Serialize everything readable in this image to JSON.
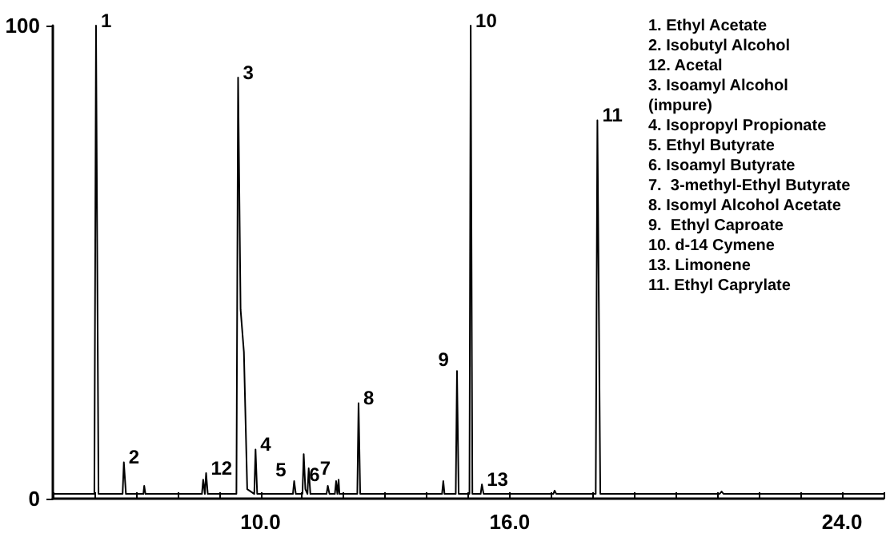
{
  "chart_data": {
    "type": "line",
    "x": [
      5.0,
      6.0,
      6.04,
      6.1,
      6.68,
      6.71,
      6.76,
      7.18,
      7.2,
      7.23,
      8.59,
      8.62,
      8.66,
      8.69,
      8.73,
      9.42,
      9.46,
      9.52,
      9.6,
      9.68,
      9.85,
      9.88,
      9.92,
      10.78,
      10.81,
      10.85,
      11.01,
      11.04,
      11.08,
      11.13,
      11.16,
      11.2,
      11.59,
      11.62,
      11.66,
      11.79,
      11.82,
      11.85,
      11.88,
      11.9,
      11.94,
      12.33,
      12.36,
      12.4,
      14.37,
      14.4,
      14.43,
      14.7,
      14.73,
      14.77,
      15.03,
      15.06,
      15.1,
      15.3,
      15.33,
      15.37,
      17.05,
      17.08,
      17.12,
      18.07,
      18.11,
      18.18,
      21.05,
      21.1,
      21.15,
      25.0
    ],
    "series": [
      {
        "color": "#000000",
        "values": [
          1,
          1,
          100,
          1,
          1,
          7.7,
          1,
          1,
          2.7,
          1,
          1,
          4,
          1,
          5.4,
          1,
          1,
          89,
          40,
          31,
          2,
          1,
          10.4,
          1,
          1,
          3.7,
          1,
          1,
          9.4,
          2,
          1,
          6.4,
          1,
          1,
          2.7,
          1,
          1,
          3.7,
          1,
          4,
          1,
          1,
          1,
          20.2,
          1,
          1,
          3.7,
          1,
          1,
          27,
          1,
          1,
          100,
          1,
          1,
          3,
          1,
          1,
          1.7,
          1,
          1,
          80,
          1,
          1,
          1.5,
          1,
          1
        ]
      }
    ],
    "xlim": [
      5,
      25
    ],
    "xticks": [
      {
        "value": 5,
        "label": null
      },
      {
        "value": 6,
        "label": null
      },
      {
        "value": 7,
        "label": null
      },
      {
        "value": 8,
        "label": null
      },
      {
        "value": 9,
        "label": null
      },
      {
        "value": 10,
        "label": "10.0"
      },
      {
        "value": 11,
        "label": null
      },
      {
        "value": 12,
        "label": null
      },
      {
        "value": 13,
        "label": null
      },
      {
        "value": 14,
        "label": null
      },
      {
        "value": 15,
        "label": null
      },
      {
        "value": 16,
        "label": "16.0"
      },
      {
        "value": 17,
        "label": null
      },
      {
        "value": 18,
        "label": null
      },
      {
        "value": 19,
        "label": null
      },
      {
        "value": 20,
        "label": null
      },
      {
        "value": 21,
        "label": null
      },
      {
        "value": 22,
        "label": null
      },
      {
        "value": 23,
        "label": null
      },
      {
        "value": 24,
        "label": "24.0"
      },
      {
        "value": 25,
        "label": null
      }
    ],
    "ylim": [
      0,
      100
    ],
    "yticks": [
      0,
      100
    ],
    "grid": false,
    "marker": "none",
    "line_style": "solid",
    "annotations": [
      {
        "text": "1",
        "x": 6.04,
        "y": 100
      },
      {
        "text": "2",
        "x": 6.71,
        "y": 7.7
      },
      {
        "text": "12",
        "x": 8.69,
        "y": 5.4
      },
      {
        "text": "3",
        "x": 9.46,
        "y": 89
      },
      {
        "text": "4",
        "x": 9.88,
        "y": 10.4
      },
      {
        "text": "5",
        "x": 10.81,
        "y": 3.7
      },
      {
        "text": "6",
        "x": 11.62,
        "y": 2.7
      },
      {
        "text": "7",
        "x": 11.88,
        "y": 4
      },
      {
        "text": "8",
        "x": 12.36,
        "y": 20.2
      },
      {
        "text": "9",
        "x": 14.73,
        "y": 27
      },
      {
        "text": "10",
        "x": 15.06,
        "y": 100
      },
      {
        "text": "13",
        "x": 15.33,
        "y": 3
      },
      {
        "text": "11",
        "x": 18.11,
        "y": 80
      },
      "1. Ethyl Acetate",
      "2. Isobutyl Alcohol",
      "12. Acetal",
      "3. Isoamyl Alcohol\n(impure)",
      "4. Isopropyl Propionate",
      "5. Ethyl Butyrate",
      "6. Isoamyl Butyrate",
      "7.  3-methyl-Ethyl Butyrate",
      "8. Isomyl Alcohol Acetate",
      "9.  Ethyl Caproate",
      "10. d-14 Cymene",
      "13. Limonene",
      "11. Ethyl Caprylate"
    ]
  }
}
